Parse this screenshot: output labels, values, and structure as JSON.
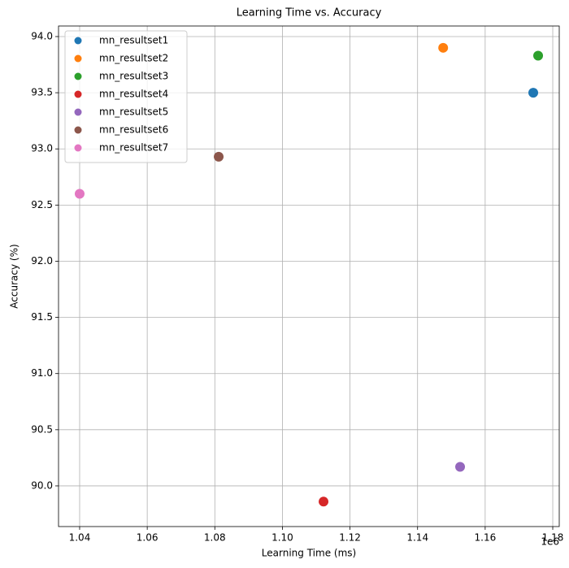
{
  "chart_data": {
    "type": "scatter",
    "title": "Learning Time vs. Accuracy",
    "x_label": "Learning Time (ms)",
    "y_label": "Accuracy (%)",
    "x_offset_label": "1e6",
    "series": [
      {
        "name": "mn_resultset1",
        "color": "#1f77b4",
        "x": [
          1174230
        ],
        "values": [
          93.5
        ]
      },
      {
        "name": "mn_resultset2",
        "color": "#ff7f0e",
        "x": [
          1147570
        ],
        "values": [
          93.9
        ]
      },
      {
        "name": "mn_resultset3",
        "color": "#2ca02c",
        "x": [
          1175670
        ],
        "values": [
          93.83
        ]
      },
      {
        "name": "mn_resultset4",
        "color": "#d62728",
        "x": [
          1112170
        ],
        "values": [
          89.86
        ]
      },
      {
        "name": "mn_resultset5",
        "color": "#9467bd",
        "x": [
          1152580
        ],
        "values": [
          90.17
        ]
      },
      {
        "name": "mn_resultset6",
        "color": "#8c564b",
        "x": [
          1081140
        ],
        "values": [
          92.93
        ]
      },
      {
        "name": "mn_resultset7",
        "color": "#e377c2",
        "x": [
          1040000
        ],
        "values": [
          92.6
        ]
      }
    ],
    "xlim": [
      1033750,
      1181920
    ],
    "ylim": [
      89.638,
      94.094
    ],
    "xticks": [
      {
        "value": 1040000,
        "label": "1.04"
      },
      {
        "value": 1060000,
        "label": "1.06"
      },
      {
        "value": 1080000,
        "label": "1.08"
      },
      {
        "value": 1100000,
        "label": "1.10"
      },
      {
        "value": 1120000,
        "label": "1.12"
      },
      {
        "value": 1140000,
        "label": "1.14"
      },
      {
        "value": 1160000,
        "label": "1.16"
      },
      {
        "value": 1180000,
        "label": "1.18"
      }
    ],
    "yticks": [
      {
        "value": 90,
        "label": "90.0"
      },
      90.5,
      {
        "value": 91,
        "label": "91.0"
      },
      91.5,
      {
        "value": 92,
        "label": "92.0"
      },
      92.5,
      {
        "value": 93,
        "label": "93.0"
      },
      93.5,
      {
        "value": 94,
        "label": "94.0"
      }
    ],
    "grid": true,
    "legend": "upper-left"
  }
}
